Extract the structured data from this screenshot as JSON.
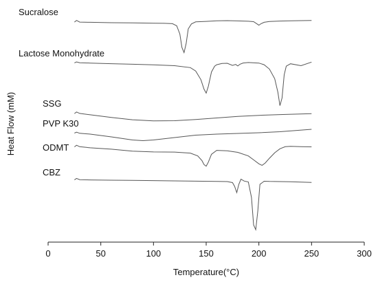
{
  "chart_data": {
    "type": "line",
    "xlabel": "Temperature(°C)",
    "ylabel": "Heat Flow (mM)",
    "xlim": [
      0,
      300
    ],
    "xticks": [
      0,
      50,
      100,
      150,
      200,
      250,
      300
    ],
    "grid": false,
    "legend": "none",
    "series": [
      {
        "name": "Sucralose",
        "x": [
          25,
          27,
          30,
          40,
          60,
          80,
          100,
          110,
          118,
          122,
          125,
          127,
          129,
          131,
          133,
          136,
          140,
          150,
          160,
          170,
          180,
          190,
          195,
          200,
          202,
          205,
          210,
          220,
          230,
          240,
          250
        ],
        "y": [
          0.6,
          2.2,
          0.6,
          0.4,
          0.0,
          -0.2,
          -0.5,
          -0.6,
          -0.9,
          -3,
          -11,
          -24,
          -29,
          -20,
          -6,
          -1.2,
          0.8,
          1.3,
          1.8,
          2.0,
          1.7,
          1.4,
          1.0,
          -2.4,
          -1.0,
          0.4,
          1.2,
          1.6,
          1.8,
          2.0,
          2.2
        ]
      },
      {
        "name": "Lactose Monohydrate",
        "x": [
          25,
          27,
          30,
          40,
          60,
          80,
          100,
          120,
          135,
          140,
          145,
          148,
          150,
          152,
          155,
          158,
          160,
          165,
          170,
          175,
          178,
          180,
          182,
          185,
          190,
          200,
          205,
          210,
          215,
          218,
          220,
          222,
          224,
          226,
          230,
          240,
          250
        ],
        "y": [
          0.4,
          1.4,
          0.6,
          0.2,
          -0.4,
          -1.0,
          -1.6,
          -2.5,
          -4.5,
          -8,
          -17,
          -27,
          -31,
          -24,
          -9,
          -3,
          -1.5,
          -0.2,
          0.0,
          -2.2,
          -1.2,
          -2.8,
          -1.0,
          0.3,
          0.8,
          0.2,
          -1.5,
          -6,
          -16,
          -30,
          -44,
          -36,
          -12,
          -3,
          -0.5,
          -2.5,
          1.2
        ]
      },
      {
        "name": "SSG",
        "x": [
          25,
          27,
          30,
          40,
          60,
          80,
          100,
          120,
          140,
          160,
          180,
          200,
          220,
          250
        ],
        "y": [
          1.0,
          3.4,
          1.2,
          -1.0,
          -5.0,
          -8.5,
          -10.2,
          -10.0,
          -8.2,
          -5.8,
          -3.5,
          -1.8,
          -0.6,
          0.8
        ]
      },
      {
        "name": "PVP K30",
        "x": [
          25,
          27,
          30,
          40,
          60,
          80,
          90,
          100,
          120,
          140,
          160,
          180,
          200,
          220,
          250
        ],
        "y": [
          0.5,
          1.8,
          0.2,
          -1.0,
          -5.0,
          -9.5,
          -10.5,
          -9.5,
          -6.0,
          -2.5,
          -1.0,
          0.0,
          1.0,
          2.5,
          6.0
        ]
      },
      {
        "name": "ODMT",
        "x": [
          25,
          27,
          30,
          40,
          60,
          80,
          100,
          120,
          135,
          142,
          146,
          148,
          150,
          152,
          155,
          160,
          170,
          180,
          190,
          195,
          200,
          203,
          206,
          210,
          215,
          220,
          225,
          230,
          240,
          250
        ],
        "y": [
          0.4,
          2.4,
          0.6,
          -0.8,
          -2.5,
          -5.0,
          -6.0,
          -6.2,
          -7.5,
          -11,
          -17,
          -22,
          -24,
          -19,
          -9,
          -4.0,
          -4.5,
          -6.5,
          -11,
          -16,
          -21,
          -23,
          -20,
          -14,
          -7,
          -2.0,
          0.6,
          1.0,
          0.6,
          0.4
        ]
      },
      {
        "name": "CBZ",
        "x": [
          25,
          27,
          30,
          40,
          60,
          80,
          100,
          120,
          140,
          160,
          170,
          175,
          177,
          179,
          181,
          183,
          186,
          190,
          193,
          195,
          197,
          199,
          201,
          205,
          210,
          230,
          250
        ],
        "y": [
          0.6,
          2.6,
          0.8,
          0.4,
          0.0,
          -0.3,
          -0.6,
          -1.0,
          -1.4,
          -1.8,
          -2.0,
          -3.5,
          -9,
          -18,
          -6,
          1.5,
          -1.2,
          -2.5,
          -25,
          -65,
          -72,
          -45,
          -6,
          -1.5,
          -1.8,
          -2.2,
          -3.2
        ]
      }
    ]
  }
}
